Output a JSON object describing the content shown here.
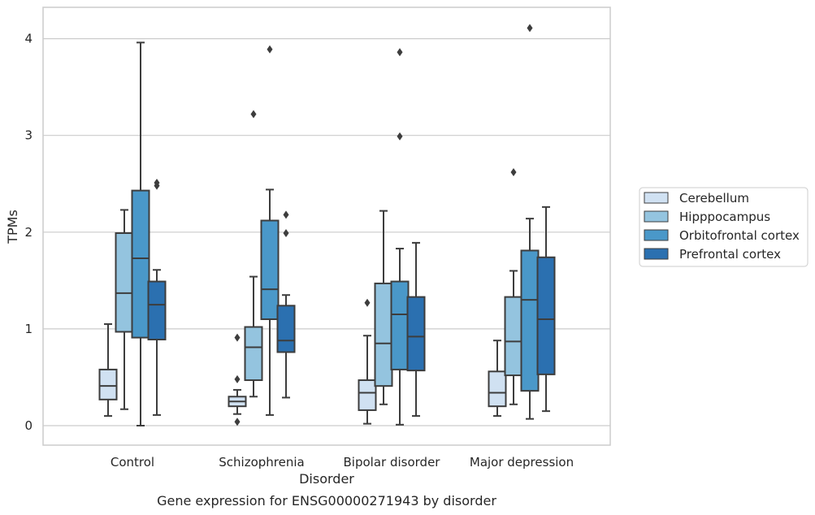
{
  "chart_data": {
    "type": "box",
    "title": "",
    "caption": "Gene expression for ENSG00000271943 by disorder",
    "xlabel": "Disorder",
    "ylabel": "TPMs",
    "ylim": [
      -0.2,
      4.32
    ],
    "yticks": [
      0,
      1,
      2,
      3,
      4
    ],
    "grid": "horizontal",
    "legend_position": "right",
    "categories": [
      "Control",
      "Schizophrenia",
      "Bipolar disorder",
      "Major depression"
    ],
    "series": [
      {
        "name": "Cerebellum",
        "color": "#d0e1f2",
        "boxes": [
          {
            "whisker_low": 0.1,
            "q1": 0.27,
            "median": 0.41,
            "q3": 0.58,
            "whisker_high": 1.05,
            "outliers": []
          },
          {
            "whisker_low": 0.12,
            "q1": 0.2,
            "median": 0.25,
            "q3": 0.3,
            "whisker_high": 0.37,
            "outliers": [
              0.04,
              0.48,
              0.91
            ]
          },
          {
            "whisker_low": 0.02,
            "q1": 0.16,
            "median": 0.34,
            "q3": 0.47,
            "whisker_high": 0.93,
            "outliers": [
              1.27
            ]
          },
          {
            "whisker_low": 0.1,
            "q1": 0.2,
            "median": 0.34,
            "q3": 0.56,
            "whisker_high": 0.88,
            "outliers": []
          }
        ]
      },
      {
        "name": "Hipppocampus",
        "color": "#94c4df",
        "boxes": [
          {
            "whisker_low": 0.17,
            "q1": 0.97,
            "median": 1.37,
            "q3": 1.99,
            "whisker_high": 2.23,
            "outliers": []
          },
          {
            "whisker_low": 0.3,
            "q1": 0.47,
            "median": 0.81,
            "q3": 1.02,
            "whisker_high": 1.54,
            "outliers": [
              3.22
            ]
          },
          {
            "whisker_low": 0.22,
            "q1": 0.41,
            "median": 0.85,
            "q3": 1.47,
            "whisker_high": 2.22,
            "outliers": []
          },
          {
            "whisker_low": 0.22,
            "q1": 0.52,
            "median": 0.87,
            "q3": 1.33,
            "whisker_high": 1.6,
            "outliers": [
              2.62
            ]
          }
        ]
      },
      {
        "name": "Orbitofrontal cortex",
        "color": "#4a98c9",
        "boxes": [
          {
            "whisker_low": 0.0,
            "q1": 0.91,
            "median": 1.73,
            "q3": 2.43,
            "whisker_high": 3.96,
            "outliers": []
          },
          {
            "whisker_low": 0.11,
            "q1": 1.1,
            "median": 1.41,
            "q3": 2.12,
            "whisker_high": 2.44,
            "outliers": [
              3.89
            ]
          },
          {
            "whisker_low": 0.01,
            "q1": 0.58,
            "median": 1.15,
            "q3": 1.49,
            "whisker_high": 1.83,
            "outliers": [
              2.99,
              3.86
            ]
          },
          {
            "whisker_low": 0.07,
            "q1": 0.36,
            "median": 1.3,
            "q3": 1.81,
            "whisker_high": 2.14,
            "outliers": [
              4.11
            ]
          }
        ]
      },
      {
        "name": "Prefrontal cortex",
        "color": "#2b70b0",
        "boxes": [
          {
            "whisker_low": 0.11,
            "q1": 0.89,
            "median": 1.25,
            "q3": 1.49,
            "whisker_high": 1.61,
            "outliers": [
              2.48,
              2.51
            ]
          },
          {
            "whisker_low": 0.29,
            "q1": 0.76,
            "median": 0.88,
            "q3": 1.24,
            "whisker_high": 1.35,
            "outliers": [
              1.99,
              2.18
            ]
          },
          {
            "whisker_low": 0.1,
            "q1": 0.57,
            "median": 0.92,
            "q3": 1.33,
            "whisker_high": 1.89,
            "outliers": []
          },
          {
            "whisker_low": 0.15,
            "q1": 0.53,
            "median": 1.1,
            "q3": 1.74,
            "whisker_high": 2.26,
            "outliers": []
          }
        ]
      }
    ]
  }
}
